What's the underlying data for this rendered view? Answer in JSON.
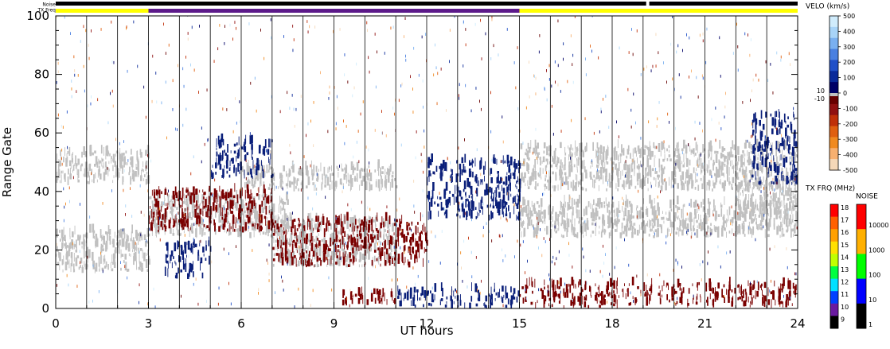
{
  "chart_data": {
    "type": "heatmap",
    "xlabel": "UT hours",
    "ylabel": "Range Gate",
    "xlim": [
      0,
      24
    ],
    "ylim": [
      0,
      100
    ],
    "x_ticks": [
      0,
      3,
      6,
      9,
      12,
      15,
      18,
      21,
      24
    ],
    "y_ticks": [
      0,
      20,
      40,
      60,
      80,
      100
    ],
    "grid": "vertical lines every hour",
    "strip_labels": {
      "noise": "Noise",
      "txfreq": "TX Freq"
    },
    "noise_strip_segments": [
      {
        "from": 0,
        "to": 19.1,
        "color": "#000000"
      },
      {
        "from": 19.2,
        "to": 24,
        "color": "#000000"
      }
    ],
    "txfreq_strip_segments": [
      {
        "from": 0,
        "to": 3,
        "color": "#ffff00"
      },
      {
        "from": 3,
        "to": 15,
        "color": "#5c1a8a"
      },
      {
        "from": 15,
        "to": 24,
        "color": "#ffff00"
      }
    ],
    "velocity_scale": {
      "title": "VELO (km/s)",
      "ticks": [
        "500",
        "400",
        "300",
        "200",
        "100",
        "0",
        "-100",
        "-200",
        "-300",
        "-400",
        "-500"
      ],
      "ground_scatter_labels": [
        "10",
        "-10"
      ],
      "colors": [
        "#f5d8b8",
        "#f7b070",
        "#f08a20",
        "#e06010",
        "#c03008",
        "#901010",
        "#680000",
        "#000066",
        "#0a2a9a",
        "#2050c8",
        "#4a80e0",
        "#7ab0f0",
        "#a8d4f8",
        "#d0ecfc"
      ]
    },
    "txfreq_scale": {
      "title": "TX FRQ (MHz)",
      "ticks": [
        "18",
        "17",
        "16",
        "15",
        "14",
        "13",
        "12",
        "11",
        "10",
        "9"
      ],
      "colors": [
        "#ff0000",
        "#ff6000",
        "#ffa000",
        "#ffe000",
        "#c0ff00",
        "#00ff40",
        "#00e0ff",
        "#0040ff",
        "#6a1aa0",
        "#000000"
      ]
    },
    "noise_scale": {
      "title": "NOISE",
      "ticks": [
        "10000",
        "1000",
        "100",
        "10",
        "1"
      ],
      "colors": [
        "#ff0000",
        "#ffb000",
        "#00ff00",
        "#0000ff",
        "#000000"
      ]
    },
    "series": [
      {
        "name": "ground-scatter",
        "color": "#c0c0c0",
        "regions": [
          {
            "x": [
              0,
              3
            ],
            "y": [
              42,
              53
            ]
          },
          {
            "x": [
              0,
              3
            ],
            "y": [
              12,
              26
            ]
          },
          {
            "x": [
              3,
              7.5
            ],
            "y": [
              24,
              38
            ]
          },
          {
            "x": [
              6,
              11
            ],
            "y": [
              40,
              48
            ]
          },
          {
            "x": [
              7,
              11
            ],
            "y": [
              14,
              30
            ]
          },
          {
            "x": [
              15,
              24
            ],
            "y": [
              40,
              55
            ]
          },
          {
            "x": [
              15,
              24
            ],
            "y": [
              24,
              36
            ]
          },
          {
            "x": [
              22,
              24
            ],
            "y": [
              30,
              42
            ]
          }
        ]
      },
      {
        "name": "negative-velocity",
        "color": "#7a0000",
        "regions": [
          {
            "x": [
              3,
              7
            ],
            "y": [
              26,
              40
            ]
          },
          {
            "x": [
              7,
              12
            ],
            "y": [
              14,
              30
            ]
          },
          {
            "x": [
              9,
              11
            ],
            "y": [
              1,
              5
            ]
          },
          {
            "x": [
              15,
              24
            ],
            "y": [
              0,
              8
            ]
          }
        ]
      },
      {
        "name": "positive-velocity",
        "color": "#0a1f7a",
        "regions": [
          {
            "x": [
              5,
              7
            ],
            "y": [
              44,
              57
            ]
          },
          {
            "x": [
              3.5,
              5
            ],
            "y": [
              10,
              22
            ]
          },
          {
            "x": [
              12,
              15
            ],
            "y": [
              30,
              50
            ]
          },
          {
            "x": [
              11,
              15
            ],
            "y": [
              0,
              6
            ]
          },
          {
            "x": [
              22.5,
              24
            ],
            "y": [
              42,
              66
            ]
          }
        ]
      }
    ]
  }
}
